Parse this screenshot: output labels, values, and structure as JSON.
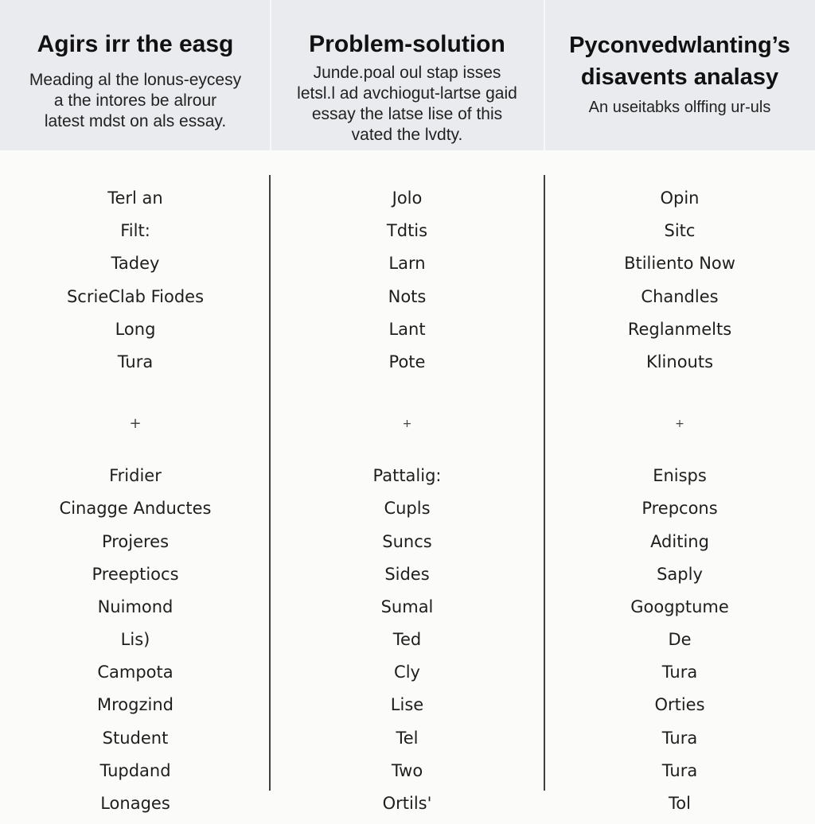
{
  "columns": [
    {
      "title": "Agirs irr the easg",
      "description": "Meading al the lonus-eycesy\na the intores be alrour\nlatest mdst on als essay.",
      "items_top": [
        "Terl an",
        "Filt:",
        "Tadey",
        "ScrieClab Fiodes",
        "Long",
        "Tura"
      ],
      "marker": "+",
      "items_bottom": [
        "Fridier",
        "Cinagge Anductes",
        "Projeres",
        "Preeptiocs",
        "Nuimond",
        "Lis)",
        "Campota",
        "Mrogzind",
        "Student",
        "Tupdand",
        "Lonages"
      ]
    },
    {
      "title": "Problem-solution",
      "description": "Junde.poal oul stap isses\nletsl.l ad avchiogut-lartse gaid\nessay the latse lise of this\nvated the lvdty.",
      "items_top": [
        "Jolo",
        "Tdtis",
        "Larn",
        "Nots",
        "Lant",
        "Pote"
      ],
      "marker": "+",
      "items_bottom": [
        "Pattalig:",
        "Cupls",
        "Suncs",
        "Sides",
        "Sumal",
        "Ted",
        "Cly",
        "Lise",
        "Tel",
        "Two",
        "Ortils'"
      ]
    },
    {
      "title": "Pyconvedwlanting’s\ndisavents analasy",
      "description": "An useitabks olffing ur-uls",
      "items_top": [
        "Opin",
        "Sitc",
        "Btiliento Now",
        "Chandles",
        "Reglanmelts",
        "Klinouts"
      ],
      "marker": "+",
      "items_bottom": [
        "Enisps",
        "Prepcons",
        "Aditing",
        "Saply",
        "Googptume",
        "De",
        "Tura",
        "Orties",
        "Tura",
        "Tura",
        "Tol"
      ]
    }
  ]
}
